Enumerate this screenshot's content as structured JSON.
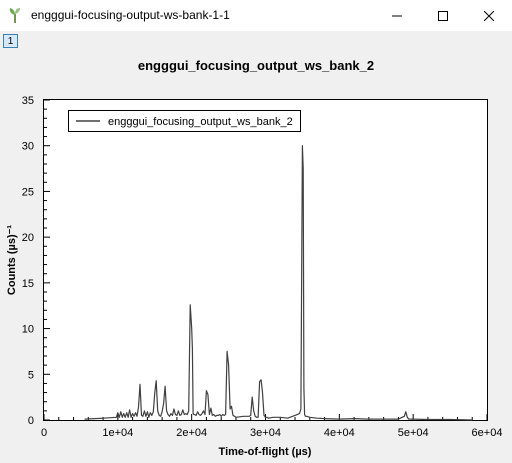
{
  "window": {
    "title": "engggui-focusing-output-ws-bank-1-1",
    "app_icon": "mantid-plant-icon",
    "controls": [
      "minimize-icon",
      "maximize-icon",
      "close-icon"
    ]
  },
  "figure_badge": "1",
  "chart_data": {
    "type": "line",
    "title": "engggui_focusing_output_ws_bank_2",
    "xlabel": "Time-of-flight (µs)",
    "ylabel": "Counts (µs)⁻¹",
    "xlim": [
      0,
      60000
    ],
    "ylim": [
      0,
      35
    ],
    "xticks": [
      0,
      10000,
      20000,
      30000,
      40000,
      50000,
      60000
    ],
    "xtick_labels": [
      "0",
      "1e+04",
      "2e+04",
      "3e+04",
      "4e+04",
      "5e+04",
      "6e+04"
    ],
    "yticks": [
      0,
      5,
      10,
      15,
      20,
      25,
      30,
      35
    ],
    "ytick_labels": [
      "0",
      "5",
      "10",
      "15",
      "20",
      "25",
      "30",
      "35"
    ],
    "legend": "top-left",
    "grid": false,
    "series": [
      {
        "name": "engggui_focusing_output_ws_bank_2",
        "color": "#404040",
        "x": [
          5500,
          8000,
          9800,
          10000,
          10200,
          10400,
          10600,
          10800,
          11000,
          11200,
          11400,
          11600,
          11800,
          12000,
          12200,
          12400,
          12600,
          12800,
          13000,
          13200,
          13400,
          13600,
          13800,
          14000,
          14200,
          14400,
          14600,
          14800,
          15000,
          15200,
          15400,
          15600,
          15800,
          16000,
          16200,
          16400,
          16600,
          16800,
          17000,
          17200,
          17400,
          17600,
          17800,
          18000,
          18200,
          18400,
          18600,
          18800,
          19000,
          19200,
          19400,
          19600,
          19800,
          20000,
          20100,
          20200,
          20300,
          20400,
          20600,
          20800,
          21000,
          21200,
          21400,
          21600,
          21800,
          22000,
          22200,
          22400,
          22600,
          22800,
          23000,
          23200,
          23400,
          23600,
          23800,
          24000,
          24200,
          24400,
          24600,
          24800,
          25000,
          25200,
          25400,
          25600,
          25800,
          26000,
          27000,
          27800,
          28000,
          28200,
          28400,
          28600,
          28800,
          29000,
          29200,
          29400,
          29600,
          29800,
          30000,
          30200,
          30400,
          31000,
          32000,
          33000,
          34000,
          34600,
          34800,
          35000,
          35100,
          35200,
          35300,
          35400,
          35600,
          36000,
          37000,
          38000,
          40000,
          42000,
          44000,
          46000,
          48000,
          48800,
          49000,
          49200,
          49400,
          50000,
          52000,
          55000,
          58000
        ],
        "y": [
          0.1,
          0.2,
          0.3,
          0.8,
          0.3,
          0.9,
          0.3,
          0.7,
          0.3,
          0.8,
          0.3,
          1.1,
          0.3,
          0.7,
          0.4,
          0.8,
          0.4,
          1.4,
          3.9,
          0.5,
          0.4,
          1.0,
          0.4,
          0.9,
          0.3,
          0.8,
          0.5,
          0.9,
          3.0,
          4.3,
          1.0,
          0.5,
          0.4,
          0.9,
          1.8,
          3.7,
          1.0,
          0.6,
          0.4,
          0.7,
          0.5,
          1.2,
          0.6,
          0.5,
          1.0,
          0.5,
          0.6,
          1.1,
          0.6,
          0.7,
          0.6,
          1.0,
          12.6,
          10.0,
          7.8,
          0.7,
          0.6,
          0.6,
          0.5,
          0.9,
          0.6,
          0.5,
          0.7,
          1.0,
          0.6,
          3.2,
          2.8,
          0.6,
          1.3,
          0.5,
          0.6,
          0.4,
          0.5,
          0.5,
          0.6,
          0.4,
          0.6,
          0.5,
          0.6,
          7.5,
          6.0,
          1.2,
          1.5,
          0.5,
          0.4,
          0.3,
          0.4,
          0.4,
          0.5,
          2.5,
          1.0,
          0.4,
          0.3,
          0.3,
          4.2,
          4.4,
          3.0,
          0.5,
          0.3,
          0.3,
          0.2,
          0.3,
          0.3,
          0.2,
          0.5,
          0.7,
          1.2,
          30.0,
          27.5,
          3.5,
          0.6,
          0.4,
          0.4,
          0.3,
          0.2,
          0.15,
          0.1,
          0.15,
          0.1,
          0.1,
          0.1,
          0.4,
          0.9,
          0.3,
          0.1,
          0.1,
          0.05,
          0.05,
          0.0
        ]
      }
    ]
  }
}
